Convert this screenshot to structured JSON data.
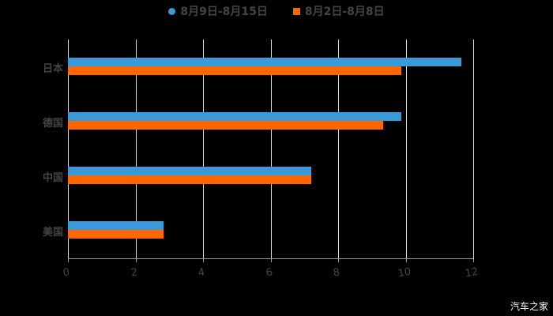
{
  "chart_data": {
    "type": "bar",
    "orientation": "horizontal",
    "title": "",
    "xlabel": "",
    "ylabel": "",
    "categories": [
      "日本",
      "德国",
      "中国",
      "美国"
    ],
    "series": [
      {
        "name": "8月9日-8月15日",
        "color": "#3a9ad9",
        "values": [
          11.65,
          9.87,
          7.2,
          2.83
        ]
      },
      {
        "name": "8月2日-8月8日",
        "color": "#ff6600",
        "values": [
          9.87,
          9.33,
          7.2,
          2.83
        ]
      }
    ],
    "xlim": [
      0,
      12
    ],
    "xticks": [
      "0",
      "2",
      "4",
      "6",
      "8",
      "10",
      "12"
    ],
    "grid": true,
    "legend_position": "top"
  },
  "legend": {
    "series1": "8月9日-8月15日",
    "series2": "8月2日-8月8日"
  },
  "watermark": "汽车之家"
}
